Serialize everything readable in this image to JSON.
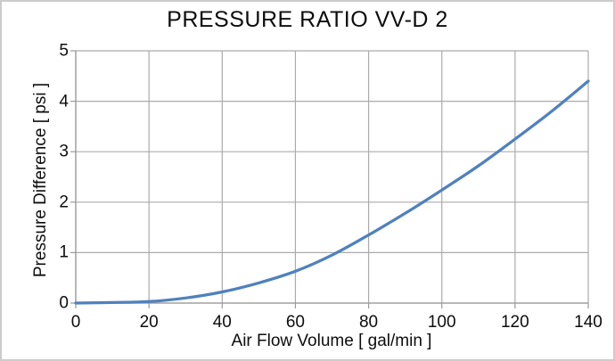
{
  "frame": {
    "background": "#ffffff",
    "border_color": "#cccccc"
  },
  "chart_data": {
    "type": "line",
    "title": "PRESSURE RATIO VV-D 2",
    "xlabel": "Air Flow Volume [ gal/min ]",
    "ylabel": "Pressure Difference [ psi ]",
    "xlim": [
      0,
      140
    ],
    "ylim": [
      0,
      5
    ],
    "x_ticks": [
      0,
      20,
      40,
      60,
      80,
      100,
      120,
      140
    ],
    "y_ticks": [
      0,
      1,
      2,
      3,
      4,
      5
    ],
    "grid": true,
    "legend": false,
    "series": [
      {
        "name": "pressure-difference-curve",
        "color": "#4f81bd",
        "x": [
          0,
          10,
          20,
          30,
          40,
          50,
          60,
          70,
          80,
          90,
          100,
          110,
          120,
          130,
          140
        ],
        "y": [
          0,
          0.01,
          0.03,
          0.1,
          0.22,
          0.4,
          0.63,
          0.95,
          1.35,
          1.78,
          2.24,
          2.72,
          3.25,
          3.8,
          4.4
        ]
      }
    ],
    "colors": {
      "gridline": "#ababab",
      "axis": "#9a9a9a",
      "text": "#0d0d0d"
    }
  }
}
